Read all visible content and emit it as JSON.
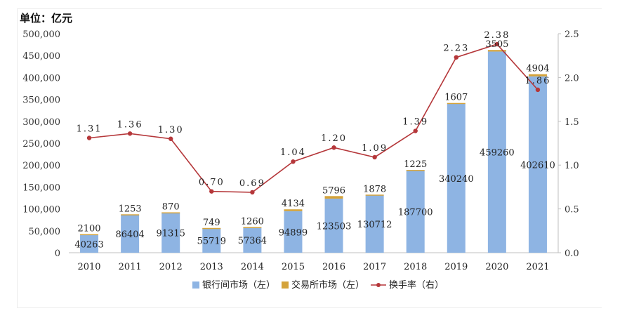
{
  "unit_label": "单位：亿元",
  "chart_data": {
    "type": "bar+line",
    "categories": [
      "2010",
      "2011",
      "2012",
      "2013",
      "2014",
      "2015",
      "2016",
      "2017",
      "2018",
      "2019",
      "2020",
      "2021"
    ],
    "series": [
      {
        "name": "银行间市场（左）",
        "type": "stacked-bar",
        "axis": "left",
        "color": "#8eb4e3",
        "values": [
          40263,
          86404,
          91315,
          55719,
          57364,
          94899,
          123503,
          130712,
          187700,
          340240,
          459260,
          402610
        ]
      },
      {
        "name": "交易所市场（左）",
        "type": "stacked-bar",
        "axis": "left",
        "color": "#d4a33a",
        "values": [
          2100,
          1253,
          870,
          749,
          1260,
          4134,
          5796,
          1878,
          1225,
          1607,
          3505,
          4904
        ]
      },
      {
        "name": "换手率（右）",
        "type": "line",
        "axis": "right",
        "color": "#b5373a",
        "values": [
          1.31,
          1.36,
          1.3,
          0.7,
          0.69,
          1.04,
          1.2,
          1.09,
          1.39,
          2.23,
          2.38,
          1.86
        ]
      }
    ],
    "y_left": {
      "min": 0,
      "max": 500000,
      "step": 50000,
      "tick_labels": [
        "0",
        "50,000",
        "100,000",
        "150,000",
        "200,000",
        "250,000",
        "300,000",
        "350,000",
        "400,000",
        "450,000",
        "500,000"
      ]
    },
    "y_right": {
      "min": 0,
      "max": 2.5,
      "step": 0.5,
      "tick_labels": [
        "0.0",
        "0.5",
        "1.0",
        "1.5",
        "2.0",
        "2.5"
      ]
    },
    "right_value_labels": [
      "1.31",
      "1.36",
      "1.30",
      "0.70",
      "0.69",
      "1.04",
      "1.20",
      "1.09",
      "1.39",
      "2.23",
      "2.38",
      "1.86"
    ],
    "legend_position": "bottom",
    "grid": false
  }
}
